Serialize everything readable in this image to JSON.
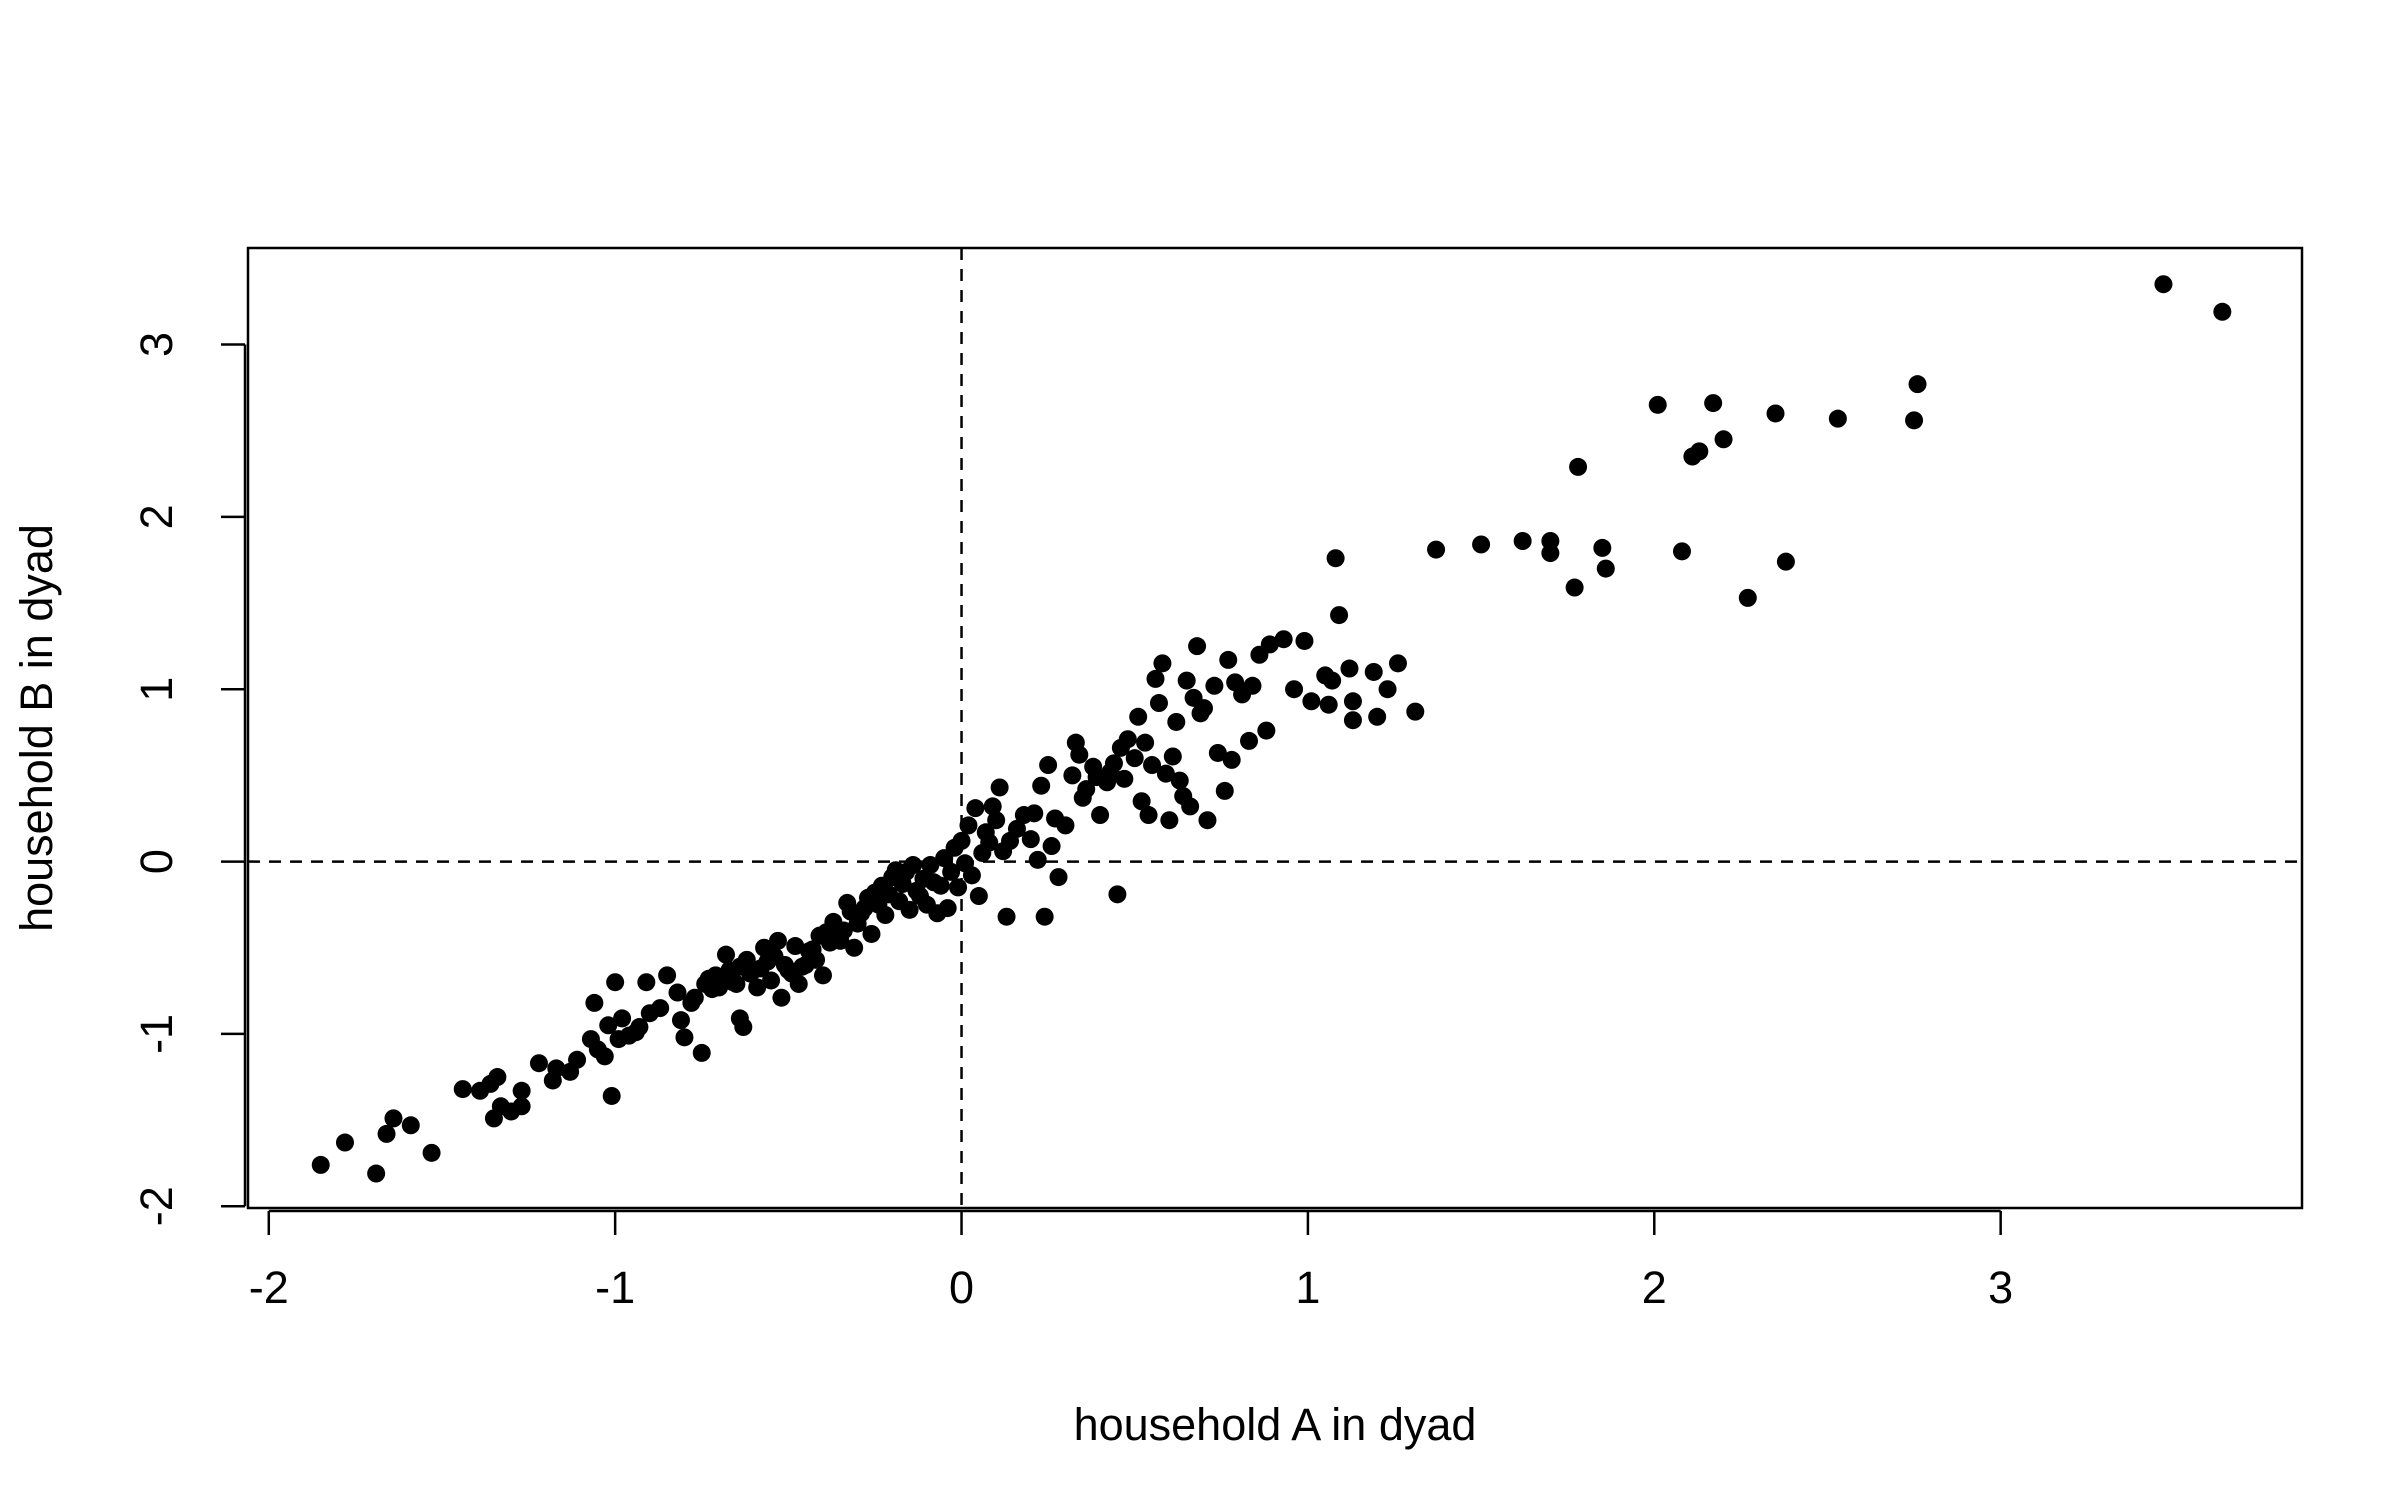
{
  "chart_data": {
    "type": "scatter",
    "title": "",
    "xlabel": "household A in dyad",
    "ylabel": "household B in dyad",
    "xlim": [
      -2.06,
      3.87
    ],
    "ylim": [
      -2.01,
      3.56
    ],
    "xticks": [
      -2,
      -1,
      0,
      1,
      2,
      3
    ],
    "yticks": [
      -2,
      -1,
      0,
      1,
      2,
      3
    ],
    "xtick_labels": [
      "-2",
      "-1",
      "0",
      "1",
      "2",
      "3"
    ],
    "ytick_labels": [
      "-2",
      "-1",
      "0",
      "1",
      "2",
      "3"
    ],
    "reference_lines": {
      "vertical_x": 0,
      "horizontal_y": 0,
      "style": "dashed"
    },
    "grid": false,
    "legend": "none",
    "marker_color": "#000000",
    "series": [
      {
        "points": [
          [
            -1.85,
            -1.76
          ],
          [
            -1.78,
            -1.63
          ],
          [
            -1.69,
            -1.81
          ],
          [
            -1.66,
            -1.58
          ],
          [
            -1.64,
            -1.49
          ],
          [
            -1.59,
            -1.53
          ],
          [
            -1.53,
            -1.69
          ],
          [
            -1.44,
            -1.32
          ],
          [
            -1.39,
            -1.33
          ],
          [
            -1.36,
            -1.29
          ],
          [
            -1.34,
            -1.25
          ],
          [
            -1.35,
            -1.49
          ],
          [
            -1.33,
            -1.42
          ],
          [
            -1.3,
            -1.45
          ],
          [
            -1.27,
            -1.42
          ],
          [
            -1.27,
            -1.33
          ],
          [
            -1.22,
            -1.17
          ],
          [
            -1.18,
            -1.27
          ],
          [
            -1.17,
            -1.2
          ],
          [
            -1.13,
            -1.22
          ],
          [
            -1.11,
            -1.15
          ],
          [
            -1.07,
            -1.03
          ],
          [
            -1.06,
            -0.82
          ],
          [
            -1.05,
            -1.09
          ],
          [
            -1.03,
            -1.13
          ],
          [
            -1.02,
            -0.95
          ],
          [
            -1.01,
            -1.36
          ],
          [
            -1.0,
            -0.7
          ],
          [
            -0.99,
            -1.03
          ],
          [
            -0.98,
            -0.91
          ],
          [
            -0.96,
            -1.01
          ],
          [
            -0.94,
            -0.99
          ],
          [
            -0.93,
            -0.96
          ],
          [
            -0.91,
            -0.7
          ],
          [
            -0.9,
            -0.88
          ],
          [
            -0.87,
            -0.85
          ],
          [
            -0.85,
            -0.66
          ],
          [
            -0.82,
            -0.76
          ],
          [
            -0.81,
            -0.92
          ],
          [
            -0.8,
            -1.02
          ],
          [
            -0.78,
            -0.82
          ],
          [
            -0.77,
            -0.79
          ],
          [
            -0.75,
            -1.11
          ],
          [
            -0.74,
            -0.71
          ],
          [
            -0.73,
            -0.68
          ],
          [
            -0.72,
            -0.74
          ],
          [
            -0.71,
            -0.66
          ],
          [
            -0.7,
            -0.73
          ],
          [
            -0.68,
            -0.54
          ],
          [
            -0.69,
            -0.68
          ],
          [
            -0.67,
            -0.63
          ],
          [
            -0.66,
            -0.7
          ],
          [
            -0.65,
            -0.71
          ],
          [
            -0.64,
            -0.91
          ],
          [
            -0.64,
            -0.61
          ],
          [
            -0.63,
            -0.96
          ],
          [
            -0.62,
            -0.57
          ],
          [
            -0.61,
            -0.65
          ],
          [
            -0.6,
            -0.63
          ],
          [
            -0.59,
            -0.73
          ],
          [
            -0.58,
            -0.62
          ],
          [
            -0.57,
            -0.5
          ],
          [
            -0.56,
            -0.58
          ],
          [
            -0.55,
            -0.69
          ],
          [
            -0.54,
            -0.55
          ],
          [
            -0.53,
            -0.46
          ],
          [
            -0.52,
            -0.79
          ],
          [
            -0.51,
            -0.6
          ],
          [
            -0.5,
            -0.63
          ],
          [
            -0.49,
            -0.65
          ],
          [
            -0.48,
            -0.49
          ],
          [
            -0.47,
            -0.71
          ],
          [
            -0.46,
            -0.61
          ],
          [
            -0.45,
            -0.6
          ],
          [
            -0.44,
            -0.52
          ],
          [
            -0.43,
            -0.51
          ],
          [
            -0.42,
            -0.57
          ],
          [
            -0.41,
            -0.43
          ],
          [
            -0.4,
            -0.66
          ],
          [
            -0.39,
            -0.41
          ],
          [
            -0.38,
            -0.47
          ],
          [
            -0.37,
            -0.35
          ],
          [
            -0.36,
            -0.42
          ],
          [
            -0.35,
            -0.46
          ],
          [
            -0.34,
            -0.4
          ],
          [
            -0.33,
            -0.24
          ],
          [
            -0.32,
            -0.29
          ],
          [
            -0.31,
            -0.5
          ],
          [
            -0.3,
            -0.36
          ],
          [
            -0.29,
            -0.3
          ],
          [
            -0.28,
            -0.27
          ],
          [
            -0.27,
            -0.21
          ],
          [
            -0.26,
            -0.42
          ],
          [
            -0.25,
            -0.18
          ],
          [
            -0.24,
            -0.25
          ],
          [
            -0.23,
            -0.14
          ],
          [
            -0.22,
            -0.31
          ],
          [
            -0.21,
            -0.19
          ],
          [
            -0.2,
            -0.09
          ],
          [
            -0.19,
            -0.05
          ],
          [
            -0.18,
            -0.23
          ],
          [
            -0.17,
            -0.13
          ],
          [
            -0.16,
            -0.06
          ],
          [
            -0.15,
            -0.28
          ],
          [
            -0.14,
            -0.02
          ],
          [
            -0.13,
            -0.17
          ],
          [
            -0.12,
            -0.2
          ],
          [
            -0.11,
            -0.1
          ],
          [
            -0.1,
            -0.25
          ],
          [
            -0.09,
            -0.02
          ],
          [
            -0.08,
            -0.12
          ],
          [
            -0.07,
            -0.3
          ],
          [
            -0.06,
            -0.14
          ],
          [
            -0.05,
            0.02
          ],
          [
            -0.04,
            -0.27
          ],
          [
            -0.03,
            -0.06
          ],
          [
            -0.02,
            0.08
          ],
          [
            -0.01,
            -0.15
          ],
          [
            0.0,
            0.12
          ],
          [
            0.01,
            -0.01
          ],
          [
            0.02,
            0.21
          ],
          [
            0.03,
            -0.08
          ],
          [
            0.04,
            0.31
          ],
          [
            0.05,
            -0.2
          ],
          [
            0.06,
            0.05
          ],
          [
            0.07,
            0.17
          ],
          [
            0.08,
            0.11
          ],
          [
            0.09,
            0.32
          ],
          [
            0.1,
            0.24
          ],
          [
            0.11,
            0.43
          ],
          [
            0.12,
            0.06
          ],
          [
            0.13,
            -0.32
          ],
          [
            0.14,
            0.12
          ],
          [
            0.16,
            0.19
          ],
          [
            0.18,
            0.27
          ],
          [
            0.2,
            0.13
          ],
          [
            0.21,
            0.28
          ],
          [
            0.22,
            0.01
          ],
          [
            0.23,
            0.44
          ],
          [
            0.24,
            -0.32
          ],
          [
            0.25,
            0.56
          ],
          [
            0.26,
            0.09
          ],
          [
            0.27,
            0.25
          ],
          [
            0.28,
            -0.09
          ],
          [
            0.3,
            0.21
          ],
          [
            0.32,
            0.5
          ],
          [
            0.33,
            0.69
          ],
          [
            0.34,
            0.62
          ],
          [
            0.35,
            0.37
          ],
          [
            0.36,
            0.42
          ],
          [
            0.38,
            0.55
          ],
          [
            0.39,
            0.49
          ],
          [
            0.4,
            0.27
          ],
          [
            0.42,
            0.46
          ],
          [
            0.43,
            0.52
          ],
          [
            0.44,
            0.57
          ],
          [
            0.45,
            -0.19
          ],
          [
            0.46,
            0.66
          ],
          [
            0.47,
            0.48
          ],
          [
            0.48,
            0.71
          ],
          [
            0.5,
            0.6
          ],
          [
            0.51,
            0.84
          ],
          [
            0.52,
            0.35
          ],
          [
            0.53,
            0.69
          ],
          [
            0.54,
            0.27
          ],
          [
            0.55,
            0.56
          ],
          [
            0.56,
            1.06
          ],
          [
            0.57,
            0.92
          ],
          [
            0.58,
            1.15
          ],
          [
            0.59,
            0.51
          ],
          [
            0.6,
            0.24
          ],
          [
            0.61,
            0.61
          ],
          [
            0.62,
            0.81
          ],
          [
            0.63,
            0.47
          ],
          [
            0.64,
            0.38
          ],
          [
            0.65,
            1.05
          ],
          [
            0.66,
            0.32
          ],
          [
            0.67,
            0.95
          ],
          [
            0.68,
            1.25
          ],
          [
            0.69,
            0.86
          ],
          [
            0.7,
            0.89
          ],
          [
            0.71,
            0.24
          ],
          [
            0.73,
            1.02
          ],
          [
            0.74,
            0.63
          ],
          [
            0.76,
            0.41
          ],
          [
            0.77,
            1.17
          ],
          [
            0.78,
            0.59
          ],
          [
            0.79,
            1.04
          ],
          [
            0.81,
            0.97
          ],
          [
            0.83,
            0.7
          ],
          [
            0.84,
            1.02
          ],
          [
            0.86,
            1.2
          ],
          [
            0.88,
            0.76
          ],
          [
            0.89,
            1.26
          ],
          [
            0.93,
            1.29
          ],
          [
            0.96,
            1.0
          ],
          [
            0.99,
            1.28
          ],
          [
            1.01,
            0.93
          ],
          [
            1.05,
            1.08
          ],
          [
            1.06,
            0.91
          ],
          [
            1.07,
            1.05
          ],
          [
            1.08,
            1.76
          ],
          [
            1.09,
            1.43
          ],
          [
            1.12,
            1.12
          ],
          [
            1.13,
            0.82
          ],
          [
            1.13,
            0.93
          ],
          [
            1.19,
            1.1
          ],
          [
            1.2,
            0.84
          ],
          [
            1.23,
            1.0
          ],
          [
            1.26,
            1.15
          ],
          [
            1.31,
            0.87
          ],
          [
            1.37,
            1.81
          ],
          [
            1.5,
            1.84
          ],
          [
            1.62,
            1.86
          ],
          [
            1.7,
            1.79
          ],
          [
            1.7,
            1.86
          ],
          [
            1.77,
            1.59
          ],
          [
            1.78,
            2.29
          ],
          [
            1.85,
            1.82
          ],
          [
            1.86,
            1.7
          ],
          [
            2.01,
            2.65
          ],
          [
            2.08,
            1.8
          ],
          [
            2.11,
            2.35
          ],
          [
            2.13,
            2.38
          ],
          [
            2.17,
            2.66
          ],
          [
            2.2,
            2.45
          ],
          [
            2.27,
            1.53
          ],
          [
            2.35,
            2.6
          ],
          [
            2.38,
            1.74
          ],
          [
            2.53,
            2.57
          ],
          [
            2.75,
            2.56
          ],
          [
            2.76,
            2.77
          ],
          [
            3.47,
            3.35
          ],
          [
            3.64,
            3.19
          ]
        ]
      }
    ]
  }
}
